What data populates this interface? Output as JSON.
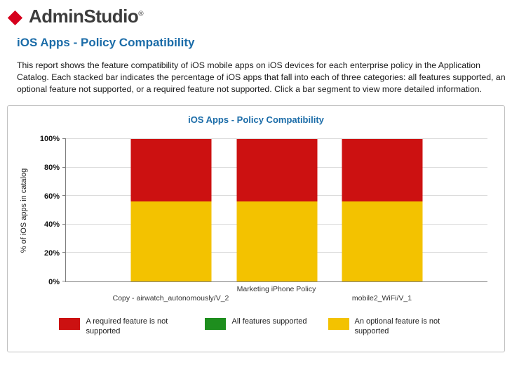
{
  "brand": {
    "name": "AdminStudio",
    "registered": "®",
    "logo_color": "#D6001C"
  },
  "page": {
    "title": "iOS Apps - Policy Compatibility",
    "description": "This report shows the feature compatibility of iOS mobile apps on iOS devices for each enterprise policy in the Application Catalog. Each stacked bar indicates the percentage of iOS apps that fall into each of three categories: all features supported, an optional feature not supported, or a required feature not supported. Click a bar segment to view more detailed information."
  },
  "chart_data": {
    "type": "bar",
    "stacked": true,
    "title": "iOS Apps - Policy Compatibility",
    "ylabel": "% of iOS apps in catalog",
    "xlabel": "",
    "ylim": [
      0,
      100
    ],
    "ytick_step": 20,
    "ytick_labels": [
      "0%",
      "20%",
      "40%",
      "60%",
      "80%",
      "100%"
    ],
    "grid": true,
    "legend_position": "bottom",
    "categories": [
      "Copy - airwatch_autonomously/V_2",
      "Marketing iPhone Policy",
      "mobile2_WiFi/V_1"
    ],
    "series": [
      {
        "name": "An optional feature is not supported",
        "color": "#F3C200",
        "values": [
          56,
          56,
          56
        ]
      },
      {
        "name": "A required feature is not supported",
        "color": "#CC1111",
        "values": [
          44,
          44,
          44
        ]
      },
      {
        "name": "All features supported",
        "color": "#1E8E1E",
        "values": [
          0,
          0,
          0
        ]
      }
    ],
    "legend": [
      {
        "label": "A required feature is not supported",
        "color": "#CC1111"
      },
      {
        "label": "All features supported",
        "color": "#1E8E1E"
      },
      {
        "label": "An optional feature is not supported",
        "color": "#F3C200"
      }
    ]
  }
}
